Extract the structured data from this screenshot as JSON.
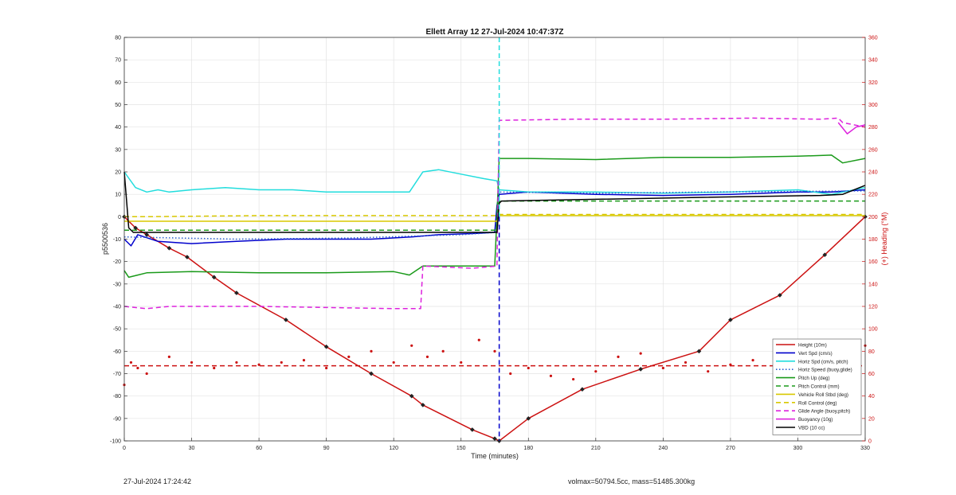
{
  "chart_data": {
    "type": "line",
    "title": "Ellett Array 12 27-Jul-2024 10:47:37Z",
    "xlabel": "Time (minutes)",
    "ylabel": "p5500536",
    "y2label": "(+) Heading (°M)",
    "xlim": [
      0,
      330
    ],
    "ylim": [
      -100,
      80
    ],
    "y2lim": [
      0,
      360
    ],
    "xticks": [
      "0",
      "30",
      "60",
      "90",
      "120",
      "150",
      "180",
      "210",
      "240",
      "270",
      "300",
      "330"
    ],
    "yticks": [
      "-100",
      "-90",
      "-80",
      "-70",
      "-60",
      "-50",
      "-40",
      "-30",
      "-20",
      "-10",
      "0",
      "10",
      "20",
      "30",
      "40",
      "50",
      "60",
      "70",
      "80"
    ],
    "y2ticks": [
      "0",
      "20",
      "40",
      "60",
      "80",
      "100",
      "120",
      "140",
      "160",
      "180",
      "200",
      "220",
      "240",
      "260",
      "280",
      "300",
      "320",
      "340",
      "360"
    ],
    "grid": true,
    "legend_position": "bottom-right",
    "apogee_time": 167,
    "series": [
      {
        "name": "Height (10m)",
        "color": "#cc1111",
        "style": "solid",
        "markers": true,
        "x": [
          0,
          5,
          10,
          20,
          28,
          40,
          50,
          72,
          90,
          110,
          128,
          133,
          155,
          165,
          167,
          180,
          204,
          230,
          256,
          270,
          292,
          312,
          330
        ],
        "y": [
          0,
          -5,
          -8,
          -14,
          -18,
          -27,
          -34,
          -46,
          -58,
          -70,
          -80,
          -84,
          -95,
          -99,
          -100,
          -90,
          -77,
          -68,
          -60,
          -46,
          -35,
          -17,
          0
        ]
      },
      {
        "name": "Vert Spd (cm/s)",
        "color": "#0000cc",
        "style": "solid",
        "x": [
          0,
          3,
          6,
          15,
          30,
          50,
          72,
          90,
          110,
          128,
          140,
          155,
          165,
          166,
          167,
          180,
          210,
          240,
          270,
          300,
          315,
          330
        ],
        "y": [
          -10,
          -13,
          -8,
          -11,
          -12,
          -11,
          -10,
          -10,
          -10,
          -9,
          -8,
          -7.5,
          -7,
          5,
          10,
          11,
          10,
          9.5,
          10,
          11,
          11,
          12
        ]
      },
      {
        "name": "Horiz Spd (cm/s, pitch)",
        "color": "#22dddd",
        "style": "solid",
        "x": [
          0,
          5,
          10,
          15,
          20,
          30,
          45,
          60,
          75,
          90,
          105,
          120,
          127,
          133,
          140,
          150,
          160,
          166,
          167,
          180,
          210,
          240,
          270,
          300,
          315,
          330
        ],
        "y": [
          20,
          13,
          11,
          12,
          11,
          12,
          13,
          12,
          12,
          11,
          11,
          11,
          11,
          20,
          21,
          19,
          17,
          16,
          12,
          11,
          11,
          10.5,
          11,
          12,
          10,
          13
        ]
      },
      {
        "name": "Horiz Speed (buoy,glide)",
        "color": "#2a5fd0",
        "style": "dotted",
        "x": [
          0,
          50,
          100,
          150,
          166,
          167,
          210,
          260,
          330
        ],
        "y": [
          -9,
          -10,
          -9.5,
          -8,
          -7,
          11,
          10.5,
          11,
          11.5
        ]
      },
      {
        "name": "Pitch Up (deg)",
        "color": "#1a9a1a",
        "style": "solid",
        "x": [
          0,
          2,
          6,
          10,
          30,
          60,
          90,
          120,
          127,
          133,
          150,
          165,
          166,
          167,
          180,
          210,
          240,
          270,
          300,
          315,
          320,
          330
        ],
        "y": [
          -24,
          -27,
          -26,
          -25,
          -24.5,
          -25,
          -25,
          -24.5,
          -26,
          -22,
          -22,
          -22,
          0,
          26,
          26,
          25.5,
          26.5,
          26.5,
          27,
          27.5,
          24,
          26
        ]
      },
      {
        "name": "Pitch Control (mm)",
        "color": "#1a9a1a",
        "style": "dashed",
        "x": [
          0,
          40,
          166,
          167,
          330
        ],
        "y": [
          -6,
          -6,
          -6,
          7,
          7
        ]
      },
      {
        "name": "Vehicle Roll Stbd (deg)",
        "color": "#d8c800",
        "style": "solid",
        "x": [
          0,
          10,
          40,
          120,
          166,
          167,
          230,
          300,
          330
        ],
        "y": [
          -2,
          -2,
          -2,
          -2,
          -2,
          0.5,
          0.5,
          0.5,
          0.5
        ]
      },
      {
        "name": "Roll Control (deg)",
        "color": "#d8c800",
        "style": "dashed",
        "x": [
          0,
          10,
          60,
          120,
          166,
          167,
          230,
          300,
          330
        ],
        "y": [
          0,
          0,
          0.5,
          0.5,
          0.5,
          1,
          1,
          1,
          1
        ]
      },
      {
        "name": "Glide Angle (buoy,pitch)",
        "color": "#dd22dd",
        "style": "dashed",
        "x": [
          0,
          10,
          20,
          60,
          120,
          132,
          133,
          155,
          166,
          167,
          200,
          240,
          280,
          310,
          318,
          320,
          330
        ],
        "y": [
          -40,
          -41,
          -40,
          -40,
          -41,
          -41,
          -22,
          -23,
          -22,
          43,
          43.5,
          43.5,
          44,
          43.5,
          44,
          42,
          40
        ]
      },
      {
        "name": "Buoyancy (10g)",
        "color": "#dd22dd",
        "style": "solid",
        "x": [
          318,
          322,
          326,
          330
        ],
        "y": [
          42,
          37,
          40,
          41
        ]
      },
      {
        "name": "VBD (10 cc)",
        "color": "#000000",
        "style": "solid",
        "x": [
          0,
          2,
          4,
          166,
          167,
          168,
          250,
          310,
          320,
          330
        ],
        "y": [
          20,
          -5,
          -7,
          -7,
          6,
          7,
          8.5,
          9.5,
          10,
          14
        ]
      },
      {
        "name": "Heading",
        "color": "#cc1111",
        "style": "dots",
        "axis": "right",
        "x": [
          0,
          3,
          6,
          10,
          20,
          30,
          40,
          50,
          60,
          70,
          80,
          90,
          100,
          110,
          120,
          128,
          135,
          142,
          150,
          158,
          165,
          172,
          180,
          190,
          200,
          210,
          220,
          230,
          240,
          250,
          260,
          270,
          280,
          290,
          300,
          310,
          320,
          325,
          330
        ],
        "y": [
          50,
          70,
          65,
          60,
          75,
          70,
          65,
          70,
          68,
          70,
          72,
          65,
          75,
          80,
          70,
          85,
          75,
          80,
          70,
          90,
          80,
          60,
          65,
          58,
          55,
          62,
          75,
          78,
          65,
          70,
          62,
          68,
          72,
          65,
          70,
          60,
          75,
          55,
          85
        ]
      },
      {
        "name": "Heading mean",
        "color": "#cc1111",
        "style": "dashed",
        "axis": "right",
        "x": [
          0,
          330
        ],
        "y": [
          67,
          67
        ]
      }
    ],
    "legend": [
      {
        "label": "Height (10m)",
        "color": "#cc1111",
        "style": "solid"
      },
      {
        "label": "Vert Spd (cm/s)",
        "color": "#0000cc",
        "style": "solid"
      },
      {
        "label": "Horiz Spd (cm/s, pitch)",
        "color": "#22dddd",
        "style": "solid"
      },
      {
        "label": "Horiz Speed (buoy,glide)",
        "color": "#2a5fd0",
        "style": "dotted"
      },
      {
        "label": "Pitch Up (deg)",
        "color": "#1a9a1a",
        "style": "solid"
      },
      {
        "label": "Pitch Control (mm)",
        "color": "#1a9a1a",
        "style": "dashed"
      },
      {
        "label": "Vehicle Roll Stbd (deg)",
        "color": "#d8c800",
        "style": "solid"
      },
      {
        "label": "Roll Control (deg)",
        "color": "#d8c800",
        "style": "dashed"
      },
      {
        "label": "Glide Angle (buoy,pitch)",
        "color": "#dd22dd",
        "style": "dashed"
      },
      {
        "label": "Buoyancy (10g)",
        "color": "#dd22dd",
        "style": "solid"
      },
      {
        "label": "VBD (10 cc)",
        "color": "#000000",
        "style": "solid"
      }
    ]
  },
  "footer": {
    "timestamp": "27-Jul-2024 17:24:42",
    "summary": "volmax=50794.5cc, mass=51485.300kg"
  }
}
